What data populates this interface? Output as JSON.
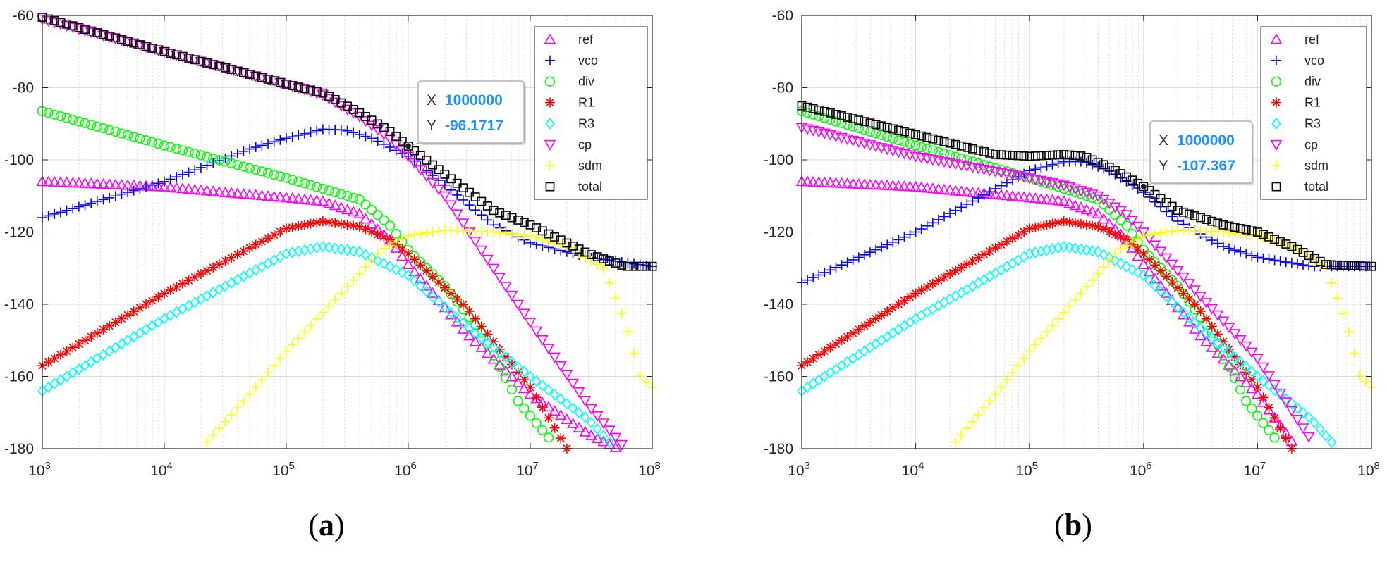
{
  "figure": {
    "captions": [
      "(a)",
      "(b)"
    ]
  },
  "chart_data": [
    {
      "type": "scatter",
      "panel": "(a)",
      "title": "",
      "xlabel": "",
      "ylabel": "",
      "xscale": "log",
      "xlim": [
        1000,
        100000000
      ],
      "ylim": [
        -180,
        -60
      ],
      "xticks": [
        1000,
        10000,
        100000,
        1000000,
        10000000,
        100000000
      ],
      "xtick_exponents": [
        "3",
        "4",
        "5",
        "6",
        "7",
        "8"
      ],
      "yticks": [
        -60,
        -80,
        -100,
        -120,
        -140,
        -160,
        -180
      ],
      "grid": true,
      "legend_position": "top-right",
      "series": [
        {
          "name": "ref",
          "marker": "triangle-up",
          "color": "#ff00ff",
          "points": [
            [
              1000,
              -106
            ],
            [
              10000,
              -107.5
            ],
            [
              30000,
              -109
            ],
            [
              100000,
              -110.5
            ],
            [
              200000,
              -111.5
            ],
            [
              400000,
              -115
            ],
            [
              700000,
              -122
            ],
            [
              1000000,
              -129
            ],
            [
              3000000,
              -148
            ],
            [
              10000000,
              -165
            ],
            [
              30000000,
              -176
            ],
            [
              60000000,
              -181
            ]
          ]
        },
        {
          "name": "vco",
          "marker": "plus",
          "color": "#0000ff",
          "points": [
            [
              1000,
              -116
            ],
            [
              10000,
              -106
            ],
            [
              50000,
              -97
            ],
            [
              100000,
              -94
            ],
            [
              200000,
              -91.5
            ],
            [
              300000,
              -91.7
            ],
            [
              500000,
              -94
            ],
            [
              1000000,
              -99
            ],
            [
              2000000,
              -107
            ],
            [
              5000000,
              -118
            ],
            [
              10000000,
              -123
            ],
            [
              30000000,
              -127
            ],
            [
              100000000,
              -129.5
            ]
          ]
        },
        {
          "name": "div",
          "marker": "circle",
          "color": "#00ff00",
          "points": [
            [
              1000,
              -86.5
            ],
            [
              10000,
              -96
            ],
            [
              100000,
              -105
            ],
            [
              200000,
              -108
            ],
            [
              400000,
              -111
            ],
            [
              700000,
              -118
            ],
            [
              1000000,
              -125
            ],
            [
              2000000,
              -135
            ],
            [
              4000000,
              -148
            ],
            [
              8000000,
              -167
            ],
            [
              15000000,
              -178
            ]
          ]
        },
        {
          "name": "R1",
          "marker": "asterisk",
          "color": "#ff0000",
          "points": [
            [
              1000,
              -157
            ],
            [
              10000,
              -137
            ],
            [
              100000,
              -119
            ],
            [
              200000,
              -117
            ],
            [
              400000,
              -118.5
            ],
            [
              700000,
              -122
            ],
            [
              1000000,
              -126
            ],
            [
              3000000,
              -141
            ],
            [
              10000000,
              -163
            ],
            [
              20000000,
              -180
            ]
          ]
        },
        {
          "name": "R3",
          "marker": "diamond",
          "color": "#00ffff",
          "points": [
            [
              1000,
              -164
            ],
            [
              10000,
              -144
            ],
            [
              100000,
              -126
            ],
            [
              200000,
              -124
            ],
            [
              400000,
              -125.5
            ],
            [
              1000000,
              -132
            ],
            [
              3000000,
              -146
            ],
            [
              10000000,
              -160
            ],
            [
              30000000,
              -172
            ],
            [
              50000000,
              -180
            ]
          ]
        },
        {
          "name": "cp",
          "marker": "triangle-down",
          "color": "#ff00ff",
          "points": [
            [
              1000,
              -61
            ],
            [
              10000,
              -70
            ],
            [
              100000,
              -79
            ],
            [
              200000,
              -82
            ],
            [
              400000,
              -88
            ],
            [
              700000,
              -94
            ],
            [
              1000000,
              -99
            ],
            [
              2000000,
              -110
            ],
            [
              5000000,
              -130
            ],
            [
              10000000,
              -145
            ],
            [
              30000000,
              -168
            ],
            [
              60000000,
              -180
            ]
          ]
        },
        {
          "name": "sdm",
          "marker": "plus",
          "color": "#ffff00",
          "points": [
            [
              20000,
              -180
            ],
            [
              50000,
              -165
            ],
            [
              100000,
              -153
            ],
            [
              300000,
              -136
            ],
            [
              600000,
              -125
            ],
            [
              1000000,
              -121
            ],
            [
              2000000,
              -119.5
            ],
            [
              5000000,
              -120
            ],
            [
              10000000,
              -121
            ],
            [
              20000000,
              -124
            ],
            [
              40000000,
              -130
            ],
            [
              60000000,
              -145
            ],
            [
              80000000,
              -160
            ],
            [
              100000000,
              -163
            ]
          ]
        },
        {
          "name": "total",
          "marker": "square",
          "color": "#000000",
          "points": [
            [
              1000,
              -60.5
            ],
            [
              10000,
              -70
            ],
            [
              100000,
              -79
            ],
            [
              200000,
              -81.5
            ],
            [
              400000,
              -87
            ],
            [
              700000,
              -92
            ],
            [
              1000000,
              -96.2
            ],
            [
              2000000,
              -104
            ],
            [
              5000000,
              -114
            ],
            [
              10000000,
              -118
            ],
            [
              30000000,
              -126
            ],
            [
              60000000,
              -129.5
            ],
            [
              100000000,
              -129.5
            ]
          ]
        }
      ],
      "datatip": {
        "x_label": "X",
        "x_value": "1000000",
        "y_label": "Y",
        "y_value": "-96.1717",
        "point_x": 1000000,
        "point_y": -96.1717
      }
    },
    {
      "type": "scatter",
      "panel": "(b)",
      "title": "",
      "xlabel": "",
      "ylabel": "",
      "xscale": "log",
      "xlim": [
        1000,
        100000000
      ],
      "ylim": [
        -180,
        -60
      ],
      "xticks": [
        1000,
        10000,
        100000,
        1000000,
        10000000,
        100000000
      ],
      "xtick_exponents": [
        "3",
        "4",
        "5",
        "6",
        "7",
        "8"
      ],
      "yticks": [
        -60,
        -80,
        -100,
        -120,
        -140,
        -160,
        -180
      ],
      "grid": true,
      "legend_position": "top-right",
      "series": [
        {
          "name": "ref",
          "marker": "triangle-up",
          "color": "#ff00ff",
          "points": [
            [
              1000,
              -106
            ],
            [
              10000,
              -107.5
            ],
            [
              30000,
              -109
            ],
            [
              100000,
              -110.5
            ],
            [
              200000,
              -111.5
            ],
            [
              400000,
              -115
            ],
            [
              700000,
              -122
            ],
            [
              1000000,
              -129
            ],
            [
              3000000,
              -148
            ],
            [
              10000000,
              -165
            ],
            [
              20000000,
              -178
            ]
          ]
        },
        {
          "name": "vco",
          "marker": "plus",
          "color": "#0000ff",
          "points": [
            [
              1000,
              -134
            ],
            [
              10000,
              -120
            ],
            [
              50000,
              -108
            ],
            [
              100000,
              -103
            ],
            [
              200000,
              -100.5
            ],
            [
              300000,
              -100.5
            ],
            [
              500000,
              -103
            ],
            [
              1000000,
              -109
            ],
            [
              2000000,
              -117
            ],
            [
              5000000,
              -124
            ],
            [
              10000000,
              -127
            ],
            [
              30000000,
              -129.5
            ],
            [
              100000000,
              -129.5
            ]
          ]
        },
        {
          "name": "div",
          "marker": "circle",
          "color": "#00ff00",
          "points": [
            [
              1000,
              -86.5
            ],
            [
              10000,
              -96
            ],
            [
              100000,
              -105
            ],
            [
              200000,
              -108
            ],
            [
              400000,
              -111
            ],
            [
              700000,
              -118
            ],
            [
              1000000,
              -125
            ],
            [
              2000000,
              -135
            ],
            [
              4000000,
              -148
            ],
            [
              8000000,
              -167
            ],
            [
              15000000,
              -178
            ]
          ]
        },
        {
          "name": "R1",
          "marker": "asterisk",
          "color": "#ff0000",
          "points": [
            [
              1000,
              -157
            ],
            [
              10000,
              -137
            ],
            [
              100000,
              -119
            ],
            [
              200000,
              -117
            ],
            [
              400000,
              -118.5
            ],
            [
              700000,
              -122
            ],
            [
              1000000,
              -126
            ],
            [
              3000000,
              -141
            ],
            [
              10000000,
              -163
            ],
            [
              20000000,
              -180
            ]
          ]
        },
        {
          "name": "R3",
          "marker": "diamond",
          "color": "#00ffff",
          "points": [
            [
              1000,
              -164
            ],
            [
              10000,
              -144
            ],
            [
              100000,
              -126
            ],
            [
              200000,
              -124
            ],
            [
              400000,
              -125.5
            ],
            [
              1000000,
              -132
            ],
            [
              3000000,
              -146
            ],
            [
              10000000,
              -160
            ],
            [
              30000000,
              -172
            ],
            [
              50000000,
              -180
            ]
          ]
        },
        {
          "name": "cp",
          "marker": "triangle-down",
          "color": "#ff00ff",
          "points": [
            [
              1000,
              -91
            ],
            [
              10000,
              -99
            ],
            [
              100000,
              -105
            ],
            [
              200000,
              -107
            ],
            [
              400000,
              -110
            ],
            [
              700000,
              -115
            ],
            [
              1000000,
              -120
            ],
            [
              3000000,
              -137
            ],
            [
              10000000,
              -155
            ],
            [
              30000000,
              -178
            ]
          ]
        },
        {
          "name": "sdm",
          "marker": "plus",
          "color": "#ffff00",
          "points": [
            [
              20000,
              -180
            ],
            [
              50000,
              -165
            ],
            [
              100000,
              -153
            ],
            [
              300000,
              -136
            ],
            [
              600000,
              -125
            ],
            [
              1000000,
              -121
            ],
            [
              2000000,
              -119.5
            ],
            [
              5000000,
              -120
            ],
            [
              10000000,
              -121
            ],
            [
              20000000,
              -124
            ],
            [
              40000000,
              -130
            ],
            [
              60000000,
              -145
            ],
            [
              80000000,
              -160
            ],
            [
              100000000,
              -163
            ]
          ]
        },
        {
          "name": "total",
          "marker": "square",
          "color": "#000000",
          "points": [
            [
              1000,
              -85
            ],
            [
              10000,
              -93
            ],
            [
              50000,
              -98.5
            ],
            [
              100000,
              -99
            ],
            [
              200000,
              -98.5
            ],
            [
              300000,
              -99
            ],
            [
              500000,
              -102
            ],
            [
              1000000,
              -107.4
            ],
            [
              2000000,
              -114
            ],
            [
              5000000,
              -118
            ],
            [
              10000000,
              -120
            ],
            [
              20000000,
              -124
            ],
            [
              40000000,
              -129
            ],
            [
              100000000,
              -129.5
            ]
          ]
        }
      ],
      "datatip": {
        "x_label": "X",
        "x_value": "1000000",
        "y_label": "Y",
        "y_value": "-107.367",
        "point_x": 1000000,
        "point_y": -107.367
      }
    }
  ]
}
